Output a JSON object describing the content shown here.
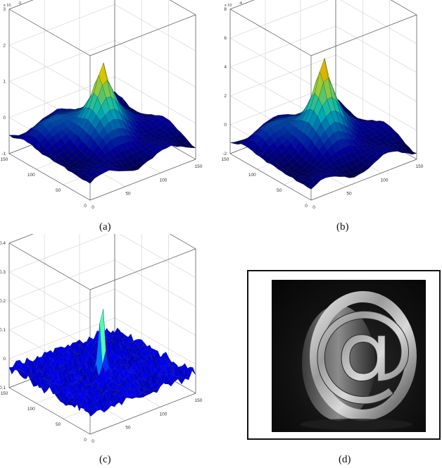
{
  "captions": {
    "a": "(a)",
    "b": "(b)",
    "c": "(c)",
    "d": "(d)"
  },
  "chart_data": [
    {
      "type": "surface",
      "panel": "a",
      "x_ticks": [
        "0",
        "50",
        "100",
        "150"
      ],
      "y_ticks": [
        "0",
        "50",
        "100",
        "150"
      ],
      "z_ticks": [
        "-1",
        "0",
        "1",
        "2",
        "3"
      ],
      "z_multiplier": "x 10",
      "z_exponent": "-3",
      "zlim": [
        -1,
        3
      ],
      "peak_z": 2.2,
      "colormap": "jet"
    },
    {
      "type": "surface",
      "panel": "b",
      "x_ticks": [
        "0",
        "50",
        "100",
        "150"
      ],
      "y_ticks": [
        "0",
        "50",
        "100",
        "150"
      ],
      "z_ticks": [
        "-2",
        "0",
        "2",
        "4",
        "6",
        "8"
      ],
      "z_multiplier": "x 10",
      "z_exponent": "-4",
      "zlim": [
        -2,
        8
      ],
      "peak_z": 6.3,
      "colormap": "jet"
    },
    {
      "type": "surface",
      "panel": "c",
      "x_ticks": [
        "0",
        "50",
        "100",
        "150"
      ],
      "y_ticks": [
        "0",
        "50",
        "100",
        "150"
      ],
      "z_ticks": [
        "-0.1",
        "0",
        "0.1",
        "0.2",
        "0.3",
        "0.4"
      ],
      "zlim": [
        -0.1,
        0.4
      ],
      "peak_z": 0.25,
      "colormap": "jet"
    }
  ],
  "image_d": {
    "symbol": "@"
  }
}
